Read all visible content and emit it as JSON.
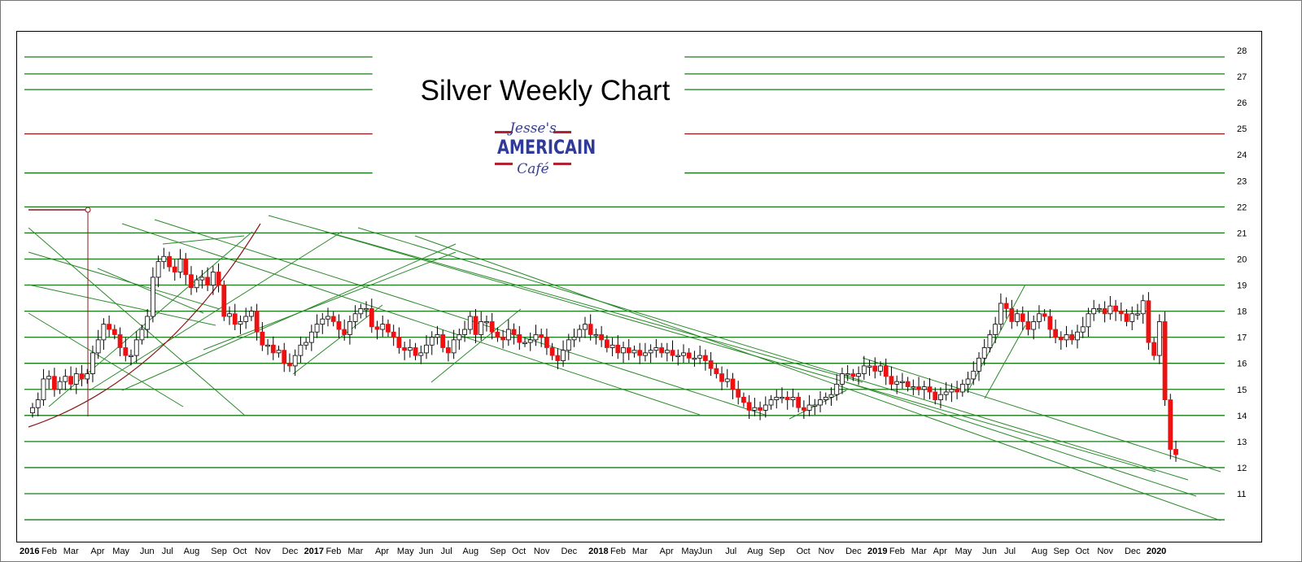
{
  "chart_data": {
    "type": "candlestick",
    "title": "Silver Weekly Chart",
    "logo": {
      "line1": "Jesse's",
      "line2": "AMERICAIN",
      "line3": "Café"
    },
    "y_axis": {
      "side": "right",
      "ylim": [
        10,
        29
      ],
      "ticks": [
        11,
        12,
        13,
        14,
        15,
        16,
        17,
        18,
        19,
        20,
        21,
        22,
        23,
        24,
        25,
        26,
        27,
        28
      ]
    },
    "x_axis": {
      "tick_labels": [
        {
          "label": "2016",
          "bold": true,
          "week": 0
        },
        {
          "label": "Feb",
          "week": 4
        },
        {
          "label": "Mar",
          "week": 8
        },
        {
          "label": "Apr",
          "week": 13
        },
        {
          "label": "May",
          "week": 17
        },
        {
          "label": "Jun",
          "week": 22
        },
        {
          "label": "Jul",
          "week": 26
        },
        {
          "label": "Aug",
          "week": 30
        },
        {
          "label": "Sep",
          "week": 35
        },
        {
          "label": "Oct",
          "week": 39
        },
        {
          "label": "Nov",
          "week": 43
        },
        {
          "label": "Dec",
          "week": 48
        },
        {
          "label": "2017",
          "bold": true,
          "week": 52
        },
        {
          "label": "Feb",
          "week": 56
        },
        {
          "label": "Mar",
          "week": 60
        },
        {
          "label": "Apr",
          "week": 65
        },
        {
          "label": "May",
          "week": 69
        },
        {
          "label": "Jun",
          "week": 73
        },
        {
          "label": "Jul",
          "week": 77
        },
        {
          "label": "Aug",
          "week": 81
        },
        {
          "label": "Sep",
          "week": 86
        },
        {
          "label": "Oct",
          "week": 90
        },
        {
          "label": "Nov",
          "week": 94
        },
        {
          "label": "Dec",
          "week": 99
        },
        {
          "label": "2018",
          "bold": true,
          "week": 104
        },
        {
          "label": "Feb",
          "week": 108
        },
        {
          "label": "Mar",
          "week": 112
        },
        {
          "label": "Apr",
          "week": 117
        },
        {
          "label": "May",
          "week": 121
        },
        {
          "label": "Jun",
          "week": 124
        },
        {
          "label": "Jul",
          "week": 129
        },
        {
          "label": "Aug",
          "week": 133
        },
        {
          "label": "Sep",
          "week": 137
        },
        {
          "label": "Oct",
          "week": 142
        },
        {
          "label": "Nov",
          "week": 146
        },
        {
          "label": "Dec",
          "week": 151
        },
        {
          "label": "2019",
          "bold": true,
          "week": 155
        },
        {
          "label": "Feb",
          "week": 159
        },
        {
          "label": "Mar",
          "week": 163
        },
        {
          "label": "Apr",
          "week": 167
        },
        {
          "label": "May",
          "week": 171
        },
        {
          "label": "Jun",
          "week": 176
        },
        {
          "label": "Jul",
          "week": 180
        },
        {
          "label": "Aug",
          "week": 185
        },
        {
          "label": "Sep",
          "week": 189
        },
        {
          "label": "Oct",
          "week": 193
        },
        {
          "label": "Nov",
          "week": 197
        },
        {
          "label": "Dec",
          "week": 202
        },
        {
          "label": "2020",
          "bold": true,
          "week": 206
        }
      ]
    },
    "colors": {
      "up": "#ffffff",
      "down": "#ee1111",
      "wick": "#000000",
      "line": "#1a7a1a",
      "red_line": "#8b1a1a"
    },
    "support_resistance": [
      {
        "y": 27.75,
        "color": "green",
        "segments": [
          [
            0,
            0.29
          ],
          [
            0.55,
            1
          ]
        ]
      },
      {
        "y": 27.1,
        "color": "green",
        "segments": [
          [
            0,
            0.29
          ],
          [
            0.55,
            1
          ]
        ]
      },
      {
        "y": 26.5,
        "color": "green",
        "segments": [
          [
            0,
            0.29
          ],
          [
            0.55,
            1
          ]
        ]
      },
      {
        "y": 24.8,
        "color": "red",
        "segments": [
          [
            0,
            0.29
          ],
          [
            0.55,
            1
          ]
        ]
      },
      {
        "y": 23.3,
        "color": "green",
        "segments": [
          [
            0,
            0.29
          ],
          [
            0.55,
            1
          ]
        ]
      },
      {
        "y": 22,
        "color": "green",
        "segments": [
          [
            0,
            1
          ]
        ]
      },
      {
        "y": 21,
        "color": "green",
        "segments": [
          [
            0,
            1
          ]
        ]
      },
      {
        "y": 20,
        "color": "green",
        "segments": [
          [
            0,
            1
          ]
        ]
      },
      {
        "y": 19,
        "color": "green",
        "segments": [
          [
            0,
            1
          ]
        ]
      },
      {
        "y": 18,
        "color": "green",
        "segments": [
          [
            0,
            1
          ]
        ]
      },
      {
        "y": 17,
        "color": "green",
        "segments": [
          [
            0,
            1
          ]
        ]
      },
      {
        "y": 16,
        "color": "green",
        "segments": [
          [
            0,
            1
          ]
        ]
      },
      {
        "y": 15,
        "color": "green",
        "segments": [
          [
            0,
            1
          ]
        ]
      },
      {
        "y": 14,
        "color": "green",
        "segments": [
          [
            0,
            1
          ]
        ]
      },
      {
        "y": 13,
        "color": "green",
        "segments": [
          [
            0,
            1
          ]
        ]
      },
      {
        "y": 12,
        "color": "green",
        "segments": [
          [
            0,
            1
          ]
        ]
      },
      {
        "y": 11,
        "color": "green",
        "segments": [
          [
            0,
            1
          ]
        ]
      },
      {
        "y": 10,
        "color": "green",
        "segments": [
          [
            0,
            1
          ]
        ]
      }
    ],
    "weekly_close": [
      14.3,
      14.6,
      15.4,
      15.5,
      15.0,
      15.3,
      15.5,
      15.2,
      15.6,
      15.4,
      15.6,
      16.4,
      16.9,
      17.5,
      17.3,
      17.1,
      16.6,
      16.3,
      16.3,
      16.9,
      17.3,
      17.8,
      19.3,
      19.9,
      20.1,
      19.7,
      19.5,
      20.0,
      19.4,
      18.9,
      19.2,
      19.3,
      19.0,
      19.5,
      19.0,
      17.8,
      17.9,
      17.5,
      17.6,
      17.8,
      18.0,
      17.2,
      16.7,
      16.7,
      16.4,
      16.5,
      16.0,
      15.9,
      16.3,
      16.7,
      16.8,
      17.2,
      17.5,
      17.7,
      17.8,
      17.6,
      17.3,
      17.1,
      17.6,
      17.9,
      18.1,
      18.1,
      17.4,
      17.3,
      17.5,
      17.2,
      17.0,
      16.6,
      16.5,
      16.6,
      16.3,
      16.4,
      16.7,
      17.0,
      17.1,
      16.6,
      16.4,
      16.9,
      17.1,
      17.3,
      17.8,
      17.1,
      17.6,
      17.6,
      17.2,
      17.0,
      16.9,
      17.3,
      17.1,
      16.8,
      16.8,
      16.9,
      17.1,
      17.0,
      16.6,
      16.3,
      16.1,
      16.5,
      16.9,
      17.0,
      17.3,
      17.5,
      17.1,
      17.1,
      16.9,
      16.6,
      16.7,
      16.4,
      16.6,
      16.4,
      16.5,
      16.3,
      16.4,
      16.5,
      16.6,
      16.4,
      16.5,
      16.3,
      16.3,
      16.4,
      16.2,
      16.2,
      16.3,
      16.1,
      15.8,
      15.6,
      15.3,
      15.4,
      15.0,
      14.7,
      14.5,
      14.2,
      14.3,
      14.2,
      14.4,
      14.6,
      14.7,
      14.7,
      14.6,
      14.7,
      14.3,
      14.2,
      14.4,
      14.4,
      14.6,
      14.7,
      14.8,
      15.2,
      15.6,
      15.6,
      15.5,
      15.6,
      15.9,
      15.9,
      15.7,
      15.9,
      15.5,
      15.2,
      15.3,
      15.3,
      15.1,
      15.1,
      15.0,
      15.1,
      14.9,
      14.6,
      14.8,
      14.9,
      15.0,
      14.9,
      15.2,
      15.4,
      15.7,
      16.2,
      16.6,
      17.1,
      17.5,
      18.3,
      18.1,
      17.6,
      17.9,
      17.6,
      17.3,
      17.6,
      17.9,
      17.8,
      17.3,
      17.0,
      16.9,
      17.1,
      16.9,
      17.2,
      17.4,
      17.9,
      18.1,
      18.1,
      17.9,
      18.2,
      18.0,
      17.9,
      17.6,
      17.9,
      17.9,
      18.4,
      16.8,
      16.3,
      17.6,
      14.6,
      12.7,
      12.5
    ]
  }
}
